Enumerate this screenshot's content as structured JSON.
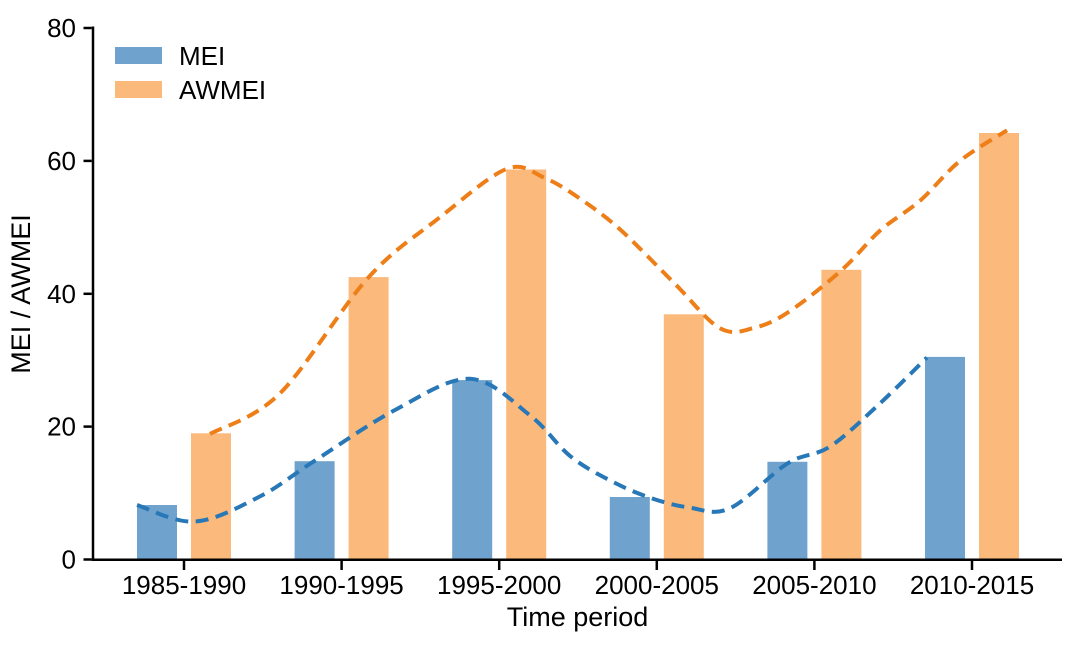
{
  "chart_data": {
    "type": "bar",
    "title": "",
    "xlabel": "Time period",
    "ylabel": "MEI / AWMEI",
    "categories": [
      "1985-1990",
      "1990-1995",
      "1995-2000",
      "2000-2005",
      "2005-2010",
      "2010-2015"
    ],
    "ylim": [
      0,
      80
    ],
    "yticks": [
      0,
      20,
      40,
      60,
      80
    ],
    "grid": false,
    "legend_position": "top-left",
    "axis_color": "#000000",
    "trend_style": "dashed",
    "series": [
      {
        "name": "MEI",
        "bar_color": "#6FA2CC",
        "line_color": "#2878B8",
        "values": [
          8.2,
          14.8,
          27.0,
          9.4,
          14.7,
          30.5
        ],
        "trend_points": [
          [
            -0.298,
            8.2
          ],
          [
            0.07,
            5.7
          ],
          [
            0.482,
            9.5
          ],
          [
            0.825,
            14.8
          ],
          [
            1.339,
            22.5
          ],
          [
            1.815,
            27.2
          ],
          [
            2.195,
            21.7
          ],
          [
            2.449,
            15.6
          ],
          [
            2.703,
            11.9
          ],
          [
            2.957,
            9.3
          ],
          [
            3.21,
            7.8
          ],
          [
            3.464,
            7.7
          ],
          [
            3.832,
            14.5
          ],
          [
            4.099,
            17.0
          ],
          [
            4.416,
            23.5
          ],
          [
            4.714,
            30.4
          ]
        ]
      },
      {
        "name": "AWMEI",
        "bar_color": "#FBBA7C",
        "line_color": "#EE7E18",
        "values": [
          19.0,
          42.5,
          58.7,
          36.9,
          43.6,
          64.2
        ],
        "trend_points": [
          [
            0.165,
            18.9
          ],
          [
            0.609,
            25.0
          ],
          [
            1.168,
            42.4
          ],
          [
            1.624,
            51.5
          ],
          [
            2.049,
            58.8
          ],
          [
            2.291,
            57.4
          ],
          [
            2.513,
            54.3
          ],
          [
            2.766,
            49.7
          ],
          [
            3.115,
            41.5
          ],
          [
            3.401,
            34.8
          ],
          [
            3.623,
            34.9
          ],
          [
            3.845,
            37.4
          ],
          [
            4.175,
            43.6
          ],
          [
            4.416,
            49.5
          ],
          [
            4.67,
            54.0
          ],
          [
            4.924,
            60.0
          ],
          [
            5.222,
            64.6
          ]
        ]
      }
    ]
  },
  "legend": {
    "items": [
      {
        "label": "MEI"
      },
      {
        "label": "AWMEI"
      }
    ]
  }
}
